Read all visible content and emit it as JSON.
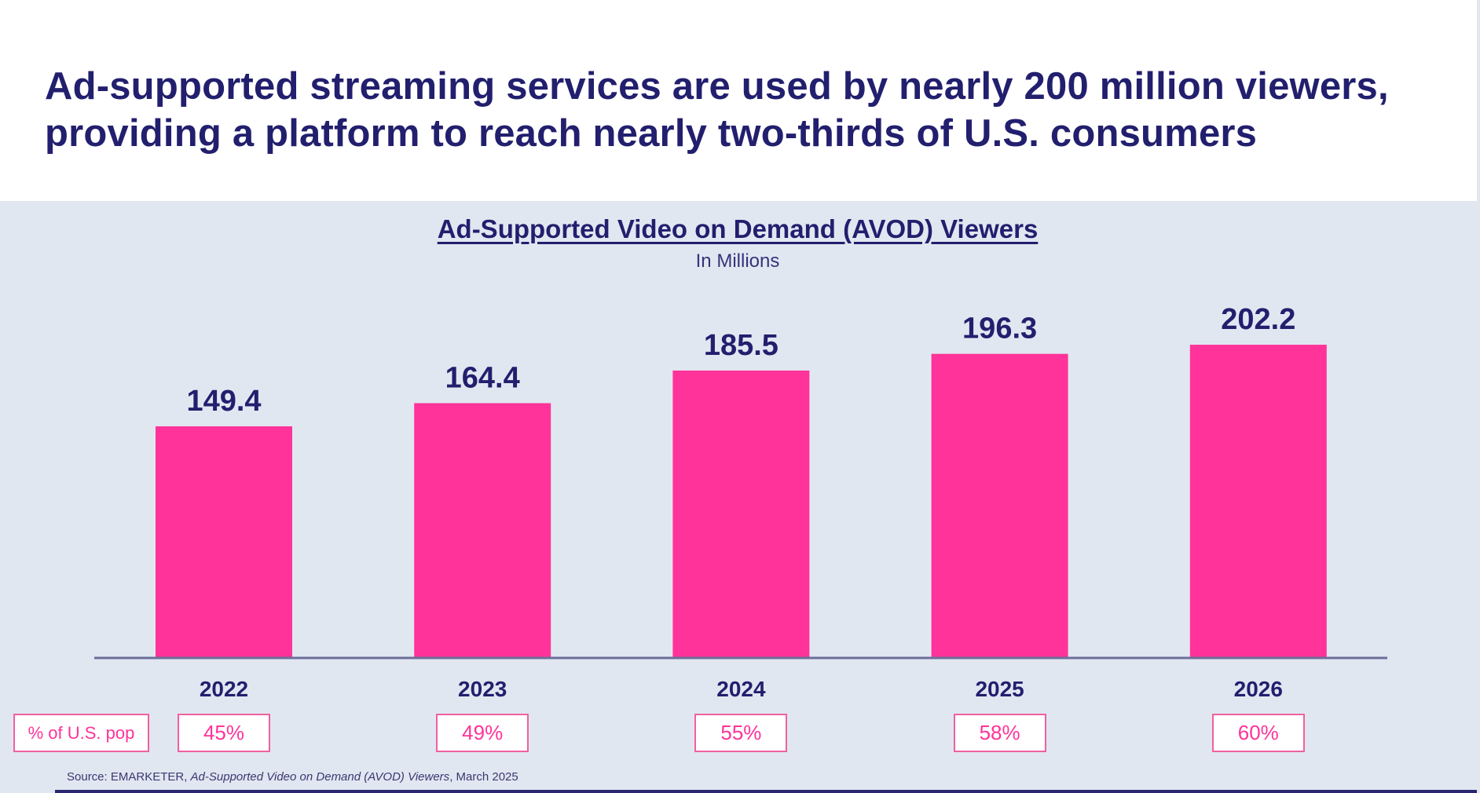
{
  "headline": {
    "line1": "Ad-supported streaming services are used by nearly 200 million viewers,",
    "line2": "providing a platform to reach nearly two-thirds of U.S. consumers"
  },
  "colors": {
    "bar": "#ff3399",
    "text_navy": "#221f6e",
    "panel_bg": "#e1e7f1",
    "pct_accent": "#ff3399"
  },
  "pct_row": {
    "label": "% of U.S. pop",
    "values": [
      "45%",
      "49%",
      "55%",
      "58%",
      "60%"
    ]
  },
  "source": {
    "prefix": "Source: EMARKETER, ",
    "title": "Ad-Supported Video on Demand (AVOD) Viewers",
    "suffix": ", March 2025"
  },
  "chart_data": {
    "type": "bar",
    "title": "Ad-Supported Video on Demand (AVOD) Viewers",
    "subtitle": "In Millions",
    "xlabel": "",
    "ylabel": "",
    "categories": [
      "2022",
      "2023",
      "2024",
      "2025",
      "2026"
    ],
    "values": [
      149.4,
      164.4,
      185.5,
      196.3,
      202.2
    ],
    "value_labels": [
      "149.4",
      "164.4",
      "185.5",
      "196.3",
      "202.2"
    ],
    "ylim": [
      0,
      425
    ],
    "grid": false,
    "legend": "none",
    "secondary_row": {
      "label": "% of U.S. pop",
      "values": [
        45,
        49,
        55,
        58,
        60
      ],
      "unit": "%"
    }
  }
}
